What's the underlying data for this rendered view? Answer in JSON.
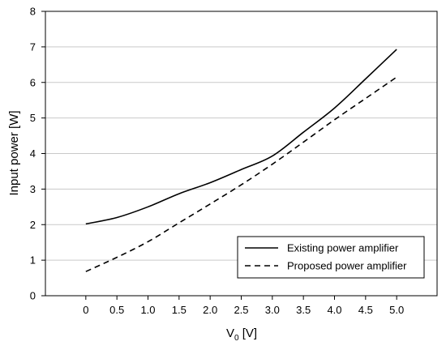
{
  "chart_data": {
    "type": "line",
    "xlabel_main": "V",
    "xlabel_sub": "0",
    "xlabel_unit": " [V]",
    "ylabel": "Input power [W]",
    "xlim": [
      -0.65,
      5.65
    ],
    "ylim": [
      0,
      8
    ],
    "x_ticks": [
      0,
      0.5,
      1.0,
      1.5,
      2.0,
      2.5,
      3.0,
      3.5,
      4.0,
      4.5,
      5.0
    ],
    "x_tick_labels": [
      "0",
      "0.5",
      "1.0",
      "1.5",
      "2.0",
      "2.5",
      "3.0",
      "3.5",
      "4.0",
      "4.5",
      "5.0"
    ],
    "y_ticks": [
      0,
      1,
      2,
      3,
      4,
      5,
      6,
      7,
      8
    ],
    "y_tick_labels": [
      "0",
      "1",
      "2",
      "3",
      "4",
      "5",
      "6",
      "7",
      "8"
    ],
    "grid": "horizontal",
    "legend_position": "bottom-right",
    "x": [
      0,
      0.5,
      1.0,
      1.5,
      2.0,
      2.5,
      3.0,
      3.5,
      4.0,
      4.5,
      5.0
    ],
    "series": [
      {
        "name": "Existing power amplifier",
        "style": "solid",
        "color": "#000000",
        "values": [
          2.02,
          2.2,
          2.5,
          2.87,
          3.18,
          3.55,
          3.93,
          4.6,
          5.28,
          6.1,
          6.93
        ]
      },
      {
        "name": "Proposed power amplifier",
        "style": "dashed",
        "color": "#000000",
        "values": [
          0.68,
          1.08,
          1.52,
          2.05,
          2.58,
          3.12,
          3.7,
          4.32,
          4.95,
          5.55,
          6.15
        ]
      }
    ]
  }
}
